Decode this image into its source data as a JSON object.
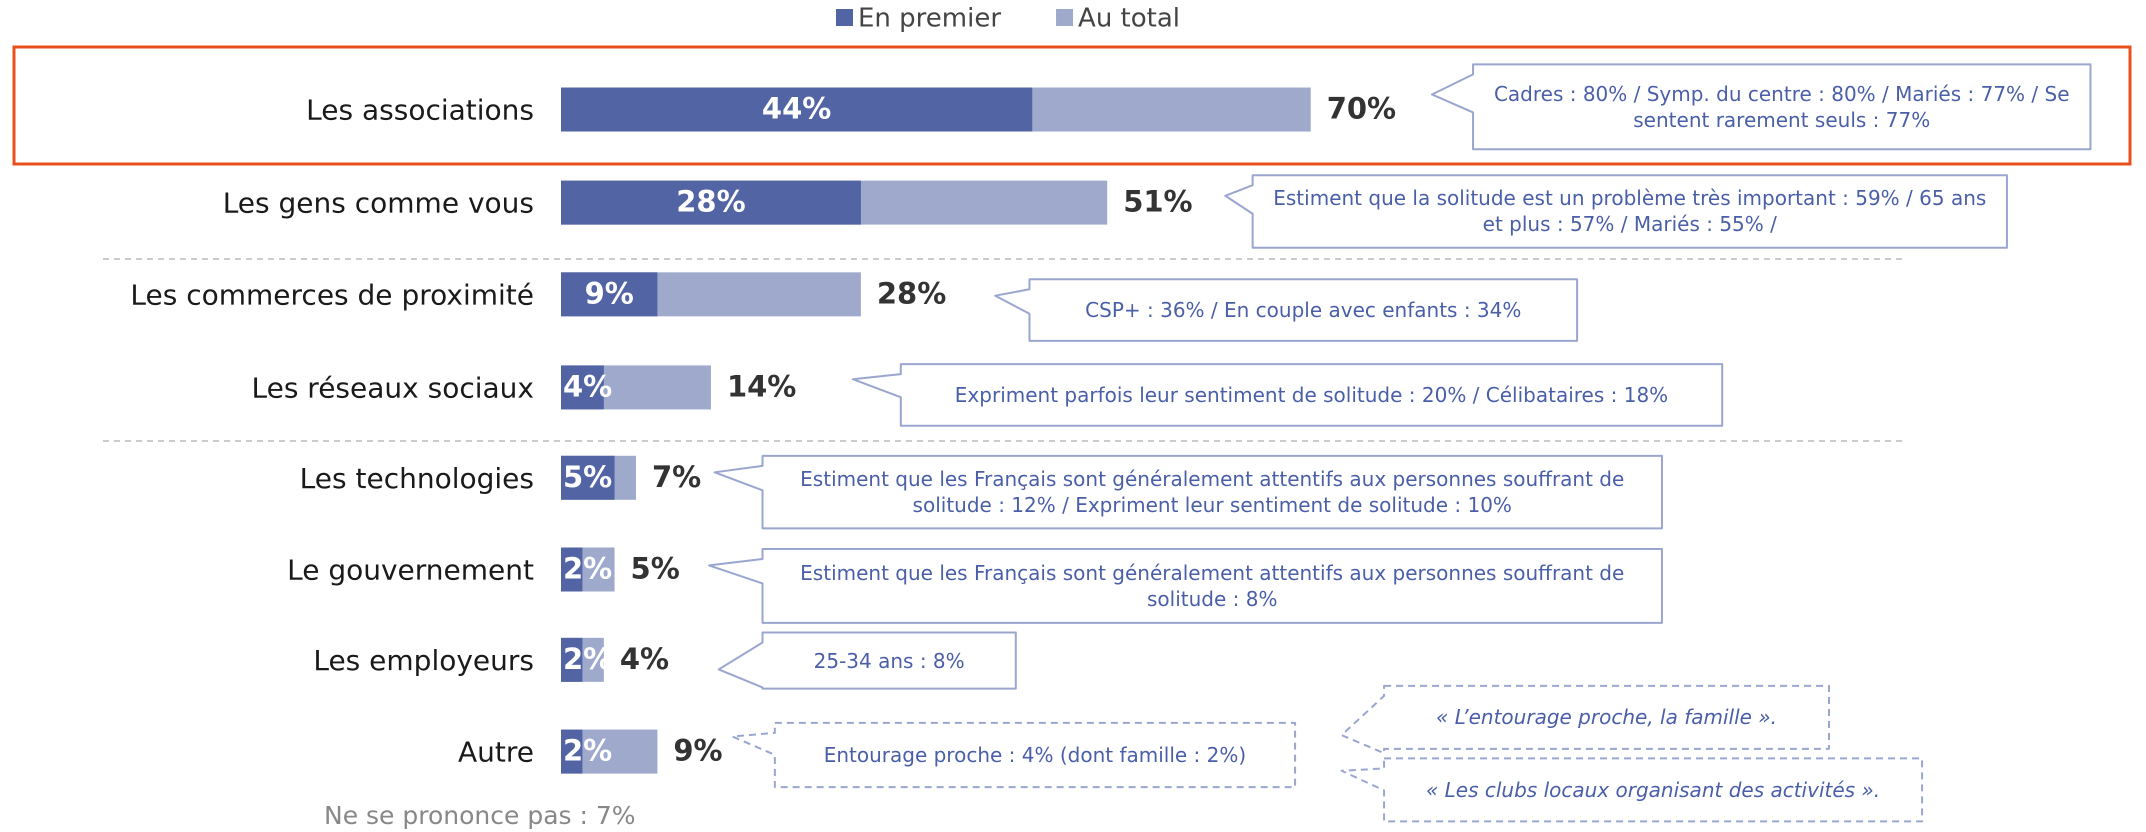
{
  "chart_data": {
    "type": "bar",
    "categories": [
      "Les associations",
      "Les gens comme vous",
      "Les commerces de proximité",
      "Les réseaux sociaux",
      "Les technologies",
      "Le gouvernement",
      "Les employeurs",
      "Autre"
    ],
    "series": [
      {
        "name": "En premier",
        "color": "#5264a4",
        "values": [
          44,
          28,
          9,
          4,
          5,
          2,
          2,
          2
        ],
        "value_labels": [
          "44%",
          "28%",
          "9%",
          "4%",
          "5%",
          "2%",
          "2%",
          "2%"
        ]
      },
      {
        "name": "Au total",
        "color": "#9ea9cc",
        "values": [
          70,
          51,
          28,
          14,
          7,
          5,
          4,
          9
        ],
        "value_labels": [
          "70%",
          "51%",
          "28%",
          "14%",
          "7%",
          "5%",
          "4%",
          "9%"
        ]
      }
    ],
    "xlim": [
      0,
      100
    ],
    "callouts": [
      "Cadres : 80% / Symp. du centre : 80% / Mariés : 77% / Se sentent rarement seuls : 77%",
      "Estiment que la solitude est un problème très important : 59% / 65 ans et plus : 57% / Mariés : 55% /",
      "CSP+ : 36% / En couple avec enfants : 34%",
      "Expriment parfois leur sentiment de solitude : 20% / Célibataires : 18%",
      "Estiment que les Français sont généralement attentifs aux personnes souffrant de solitude : 12% / Expriment leur sentiment de solitude : 10%",
      "Estiment que les Français sont généralement attentifs aux personnes souffrant de solitude : 8%",
      "25-34 ans : 8%",
      "Entourage proche : 4% (dont famille : 2%)"
    ],
    "quotes": [
      "« L’entourage proche, la famille ».",
      "« Les clubs locaux organisant des activités »."
    ],
    "footnote": "Ne se prononce pas : 7%"
  }
}
